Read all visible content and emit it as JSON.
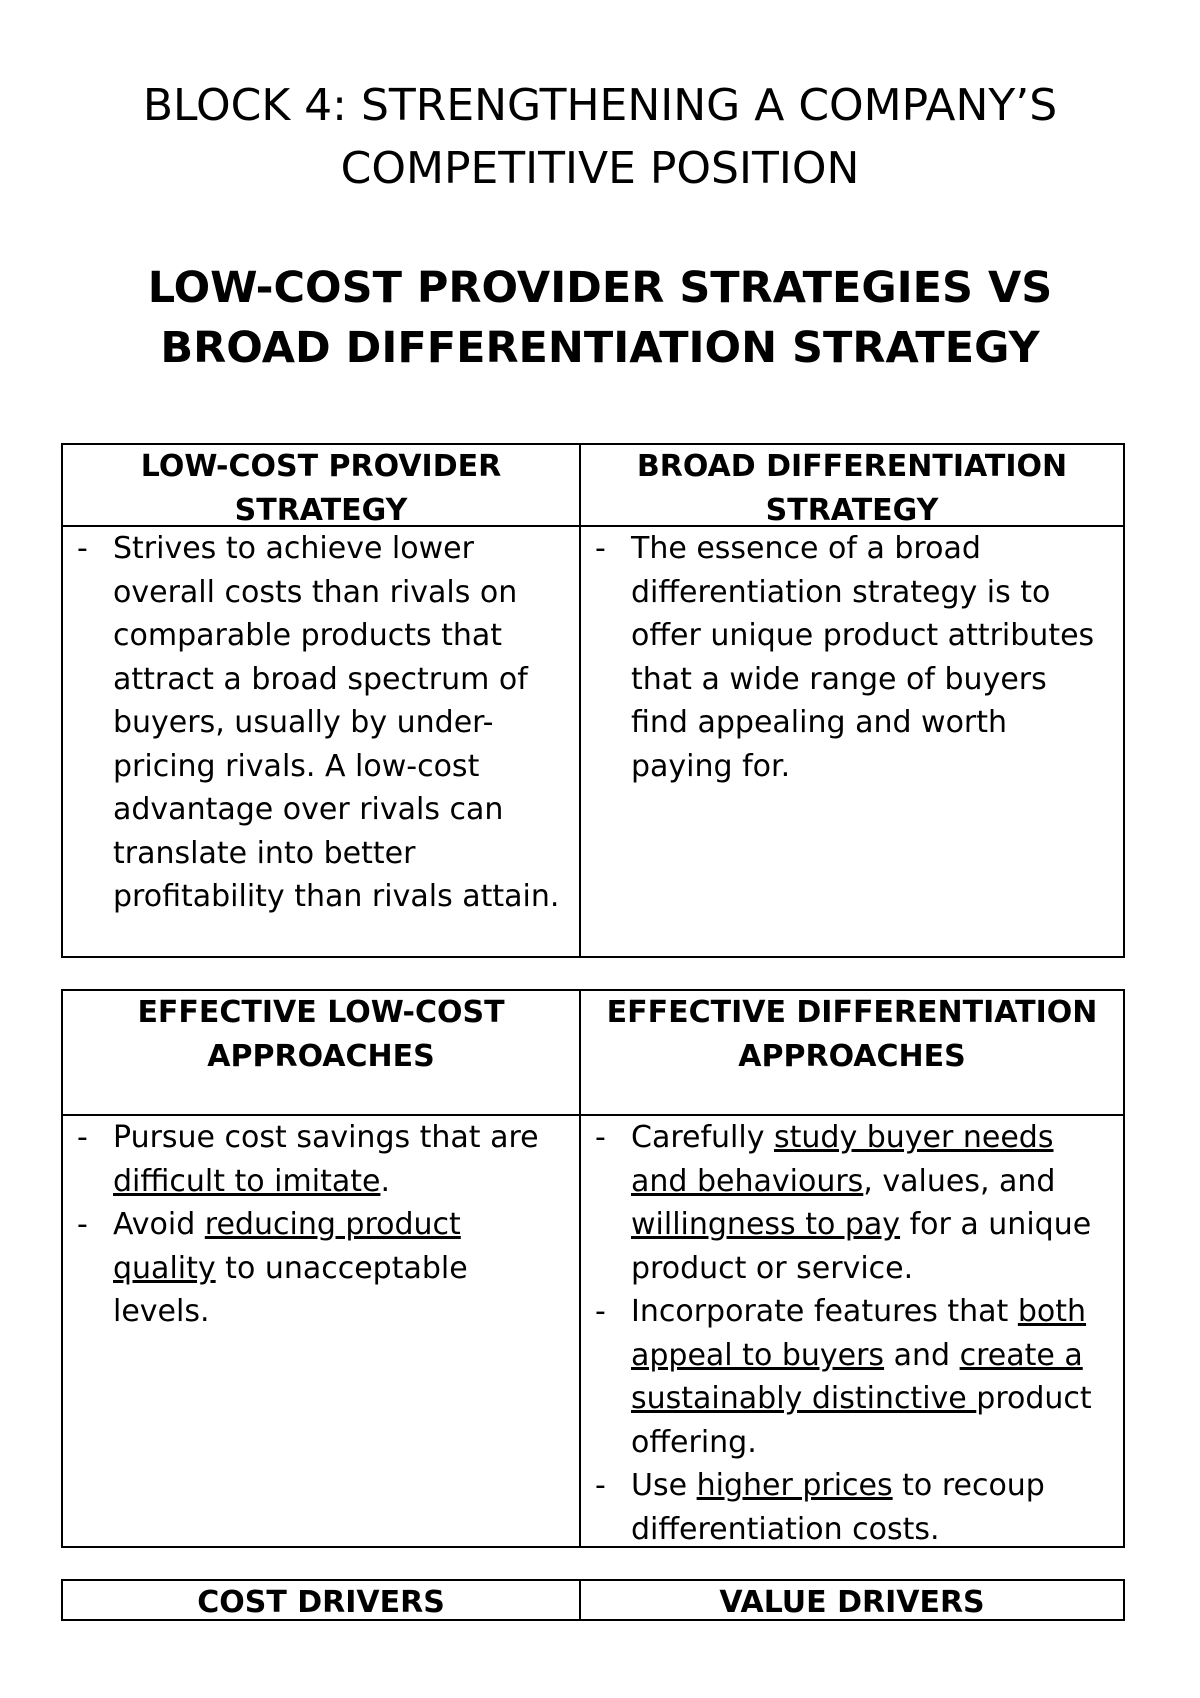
{
  "header": {
    "title": "BLOCK 4: STRENGTHENING A COMPANY’S COMPETITIVE POSITION",
    "subtitle": "LOW-COST PROVIDER STRATEGIES VS BROAD DIFFERENTIATION STRATEGY"
  },
  "tables": [
    {
      "columns": [
        {
          "header": "LOW-COST PROVIDER STRATEGY",
          "bullets": [
            [
              {
                "text": "Strives to achieve lower overall costs than rivals on comparable products that attract a broad spectrum of buyers, usually by under-pricing rivals. A low-cost advantage over rivals can translate into better profitability than rivals attain."
              }
            ]
          ]
        },
        {
          "header": "BROAD DIFFERENTIATION STRATEGY",
          "bullets": [
            [
              {
                "text": "The essence of a broad differentiation strategy is to offer unique product attributes that a wide range of buyers find appealing and worth paying for."
              }
            ]
          ]
        }
      ]
    },
    {
      "columns": [
        {
          "header": "EFFECTIVE LOW-COST APPROACHES",
          "bullets": [
            [
              {
                "text": "Pursue cost savings that are "
              },
              {
                "text": "difficult to imitate",
                "underline": true
              },
              {
                "text": "."
              }
            ],
            [
              {
                "text": "Avoid "
              },
              {
                "text": "reducing product quality",
                "underline": true
              },
              {
                "text": " to unacceptable levels."
              }
            ]
          ]
        },
        {
          "header": "EFFECTIVE DIFFERENTIATION APPROACHES",
          "bullets": [
            [
              {
                "text": "Carefully "
              },
              {
                "text": "study buyer needs and behaviours",
                "underline": true
              },
              {
                "text": ", values, and "
              },
              {
                "text": "willingness to pay",
                "underline": true
              },
              {
                "text": " for a unique product or service."
              }
            ],
            [
              {
                "text": "Incorporate features that "
              },
              {
                "text": "both appeal to buyers",
                "underline": true
              },
              {
                "text": " and "
              },
              {
                "text": "create a sustainably distinctive ",
                "underline": true
              },
              {
                "text": "product offering."
              }
            ],
            [
              {
                "text": "Use "
              },
              {
                "text": "higher prices",
                "underline": true
              },
              {
                "text": " to recoup differentiation costs."
              }
            ]
          ]
        }
      ]
    },
    {
      "columns": [
        {
          "header": "COST DRIVERS",
          "bullets": []
        },
        {
          "header": "VALUE DRIVERS",
          "bullets": []
        }
      ]
    }
  ]
}
